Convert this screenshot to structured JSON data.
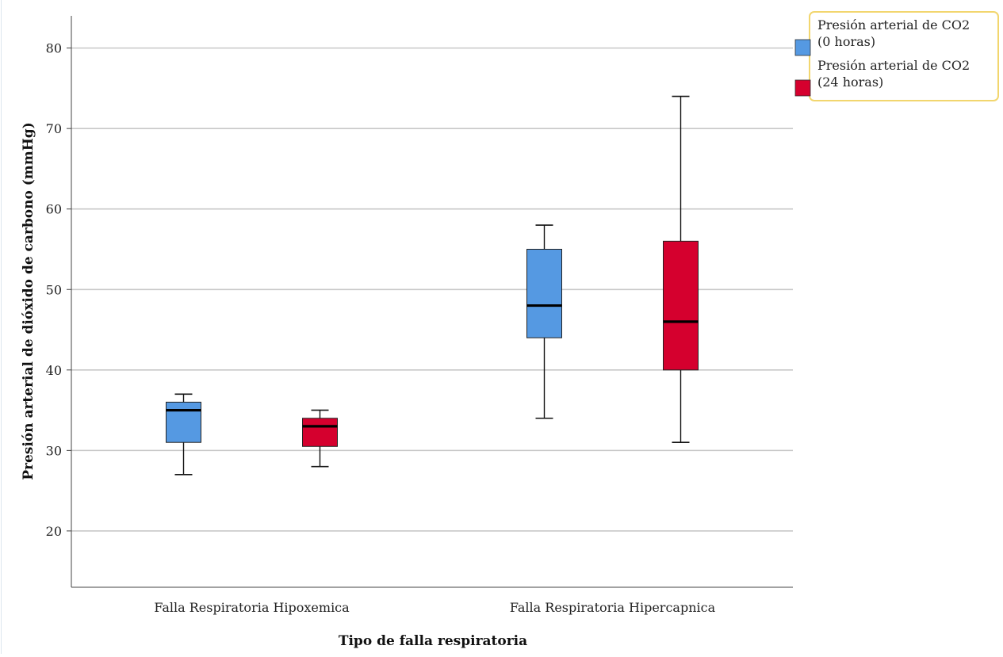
{
  "chart_data": {
    "type": "boxplot",
    "title": "",
    "xlabel": "Tipo de falla respiratoria",
    "ylabel": "Presión arterial de dióxido de carbono (mmHg)",
    "ylim": [
      13,
      84
    ],
    "yticks": [
      20,
      30,
      40,
      50,
      60,
      70,
      80
    ],
    "grid": true,
    "legend_position": "top-right",
    "categories": [
      "Falla Respiratoria Hipoxemica",
      "Falla Respiratoria Hipercapnica"
    ],
    "series": [
      {
        "name": [
          "Presión arterial de CO2",
          "(0 horas)"
        ],
        "color": "#5599e2",
        "boxes": [
          {
            "whisker_low": 27,
            "q1": 31,
            "median": 35,
            "q3": 36,
            "whisker_high": 37
          },
          {
            "whisker_low": 34,
            "q1": 44,
            "median": 48,
            "q3": 55,
            "whisker_high": 58
          }
        ]
      },
      {
        "name": [
          "Presión arterial de CO2",
          "(24 horas)"
        ],
        "color": "#d5002e",
        "boxes": [
          {
            "whisker_low": 28,
            "q1": 30.5,
            "median": 33,
            "q3": 34,
            "whisker_high": 35
          },
          {
            "whisker_low": 31,
            "q1": 40,
            "median": 46,
            "q3": 56,
            "whisker_high": 74
          }
        ]
      }
    ],
    "legend_border_color": "#f2d66e"
  }
}
